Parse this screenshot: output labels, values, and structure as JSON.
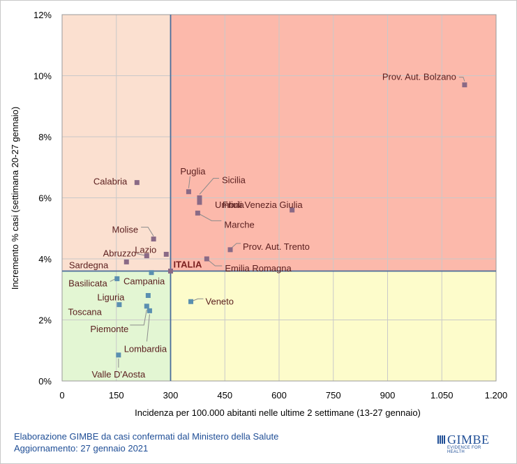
{
  "chart_data": {
    "type": "scatter",
    "xlabel": "Incidenza per 100.000 abitanti nelle ultime 2 settimane (13-27 gennaio)",
    "ylabel": "Incremento % casi (settimana 20-27 gennaio)",
    "xlim": [
      0,
      1200
    ],
    "ylim": [
      0,
      12
    ],
    "x_ticks": [
      "0",
      "150",
      "300",
      "450",
      "600",
      "750",
      "900",
      "1.050",
      "1.200"
    ],
    "y_ticks": [
      "0%",
      "2%",
      "4%",
      "6%",
      "8%",
      "10%",
      "12%"
    ],
    "grid": true,
    "reference": {
      "name": "ITALIA",
      "x": 300,
      "y": 3.6
    },
    "quadrant_colors": {
      "top_left": "#fbe0d0",
      "top_right": "#fcb9ab",
      "bottom_left": "#e3f6d3",
      "bottom_right": "#fdfccb"
    },
    "marker_color": "#8a6a86",
    "marker_color_low": "#5a8fb0",
    "points": [
      {
        "name": "Prov. Aut. Bolzano",
        "x": 1113,
        "y": 9.7
      },
      {
        "name": "Calabria",
        "x": 207,
        "y": 6.5
      },
      {
        "name": "Puglia",
        "x": 350,
        "y": 6.2
      },
      {
        "name": "Sicilia",
        "x": 380,
        "y": 6.0
      },
      {
        "name": "Umbria",
        "x": 380,
        "y": 5.85
      },
      {
        "name": "Friuli Venezia Giulia",
        "x": 636,
        "y": 5.6
      },
      {
        "name": "Marche",
        "x": 375,
        "y": 5.5
      },
      {
        "name": "Molise",
        "x": 253,
        "y": 4.65
      },
      {
        "name": "Prov. Aut. Trento",
        "x": 465,
        "y": 4.3
      },
      {
        "name": "Lazio",
        "x": 288,
        "y": 4.15
      },
      {
        "name": "Abruzzo",
        "x": 234,
        "y": 4.1
      },
      {
        "name": "Emilia Romagna",
        "x": 400,
        "y": 4.0
      },
      {
        "name": "Sardegna",
        "x": 178,
        "y": 3.9
      },
      {
        "name": "Campania",
        "x": 247,
        "y": 3.55
      },
      {
        "name": "Basilicata",
        "x": 152,
        "y": 3.35
      },
      {
        "name": "Liguria",
        "x": 238,
        "y": 2.8
      },
      {
        "name": "Veneto",
        "x": 356,
        "y": 2.6
      },
      {
        "name": "Toscana",
        "x": 158,
        "y": 2.5
      },
      {
        "name": "Piemonte",
        "x": 234,
        "y": 2.45
      },
      {
        "name": "Lombardia",
        "x": 242,
        "y": 2.3
      },
      {
        "name": "Valle D'Aosta",
        "x": 156,
        "y": 0.85
      }
    ]
  },
  "footer": {
    "line1": "Elaborazione GIMBE da casi confermati dal Ministero della Salute",
    "line2": "Aggiornamento: 27 gennaio 2021"
  },
  "logo": {
    "name": "GIMBE",
    "tagline": "EVIDENCE FOR HEALTH",
    "icon": "gimbe-logo-icon"
  }
}
